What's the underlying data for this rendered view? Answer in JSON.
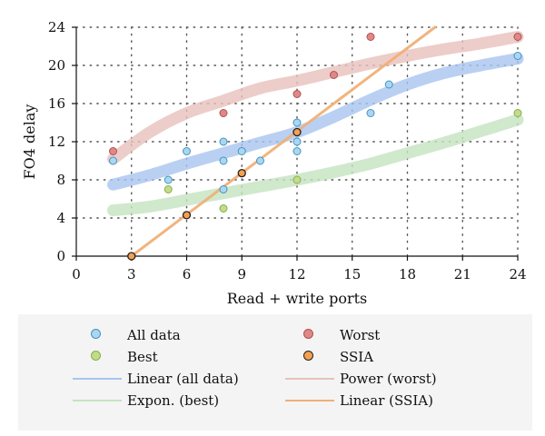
{
  "chart_data": {
    "type": "scatter",
    "title": "",
    "xlabel": "Read + write ports",
    "ylabel": "FO4 delay",
    "xlim": [
      0,
      24
    ],
    "ylim": [
      0,
      24
    ],
    "xticks": [
      0,
      3,
      6,
      9,
      12,
      15,
      18,
      21,
      24
    ],
    "yticks": [
      0,
      4,
      8,
      12,
      16,
      20,
      24
    ],
    "grid": "dotted horizontal and vertical",
    "legend_position": "bottom",
    "series": [
      {
        "name": "All data",
        "kind": "points",
        "color": "#a8d8f0",
        "edge": "#4a90c0",
        "points": [
          [
            2,
            10
          ],
          [
            5,
            8
          ],
          [
            6,
            11
          ],
          [
            8,
            12
          ],
          [
            8,
            10
          ],
          [
            8,
            7
          ],
          [
            9,
            11
          ],
          [
            10,
            10
          ],
          [
            12,
            14
          ],
          [
            12,
            13
          ],
          [
            12,
            12
          ],
          [
            12,
            11
          ],
          [
            16,
            15
          ],
          [
            17,
            18
          ],
          [
            24,
            21
          ]
        ]
      },
      {
        "name": "Worst",
        "kind": "points",
        "color": "#e08888",
        "edge": "#b05050",
        "points": [
          [
            2,
            11
          ],
          [
            8,
            15
          ],
          [
            12,
            17
          ],
          [
            14,
            19
          ],
          [
            16,
            23
          ],
          [
            24,
            23
          ]
        ]
      },
      {
        "name": "Best",
        "kind": "points",
        "color": "#c2dc88",
        "edge": "#8aac50",
        "points": [
          [
            5,
            7
          ],
          [
            8,
            5
          ],
          [
            12,
            8
          ],
          [
            24,
            15
          ]
        ]
      },
      {
        "name": "SSIA",
        "kind": "points",
        "color": "#f5a050",
        "edge": "#222222",
        "points": [
          [
            3,
            0
          ],
          [
            6,
            4.3
          ],
          [
            9,
            8.7
          ],
          [
            12,
            13
          ]
        ]
      },
      {
        "name": "Linear (all data)",
        "kind": "trend",
        "color": "#a8c4f0",
        "points": [
          [
            2,
            7.5
          ],
          [
            4,
            8.5
          ],
          [
            6,
            9.7
          ],
          [
            8,
            10.8
          ],
          [
            10,
            11.9
          ],
          [
            12,
            13
          ],
          [
            14,
            14.6
          ],
          [
            16,
            16.4
          ],
          [
            18,
            18
          ],
          [
            20,
            19.2
          ],
          [
            22,
            20
          ],
          [
            24,
            20.7
          ]
        ]
      },
      {
        "name": "Power (worst)",
        "kind": "trend",
        "color": "#e8c0bc",
        "points": [
          [
            2,
            10.2
          ],
          [
            4,
            13
          ],
          [
            6,
            15
          ],
          [
            8,
            16.3
          ],
          [
            10,
            17.6
          ],
          [
            12,
            18.4
          ],
          [
            14,
            19.3
          ],
          [
            16,
            20.2
          ],
          [
            18,
            21
          ],
          [
            20,
            21.7
          ],
          [
            22,
            22.3
          ],
          [
            24,
            23
          ]
        ]
      },
      {
        "name": "Expon. (best)",
        "kind": "trend",
        "color": "#c4e4c0",
        "points": [
          [
            2,
            4.8
          ],
          [
            4,
            5.2
          ],
          [
            6,
            5.9
          ],
          [
            8,
            6.6
          ],
          [
            10,
            7.3
          ],
          [
            12,
            8
          ],
          [
            14,
            8.8
          ],
          [
            16,
            9.7
          ],
          [
            18,
            10.8
          ],
          [
            20,
            11.9
          ],
          [
            22,
            13.1
          ],
          [
            24,
            14.3
          ]
        ]
      },
      {
        "name": "Linear (SSIA)",
        "kind": "trend",
        "color": "#f0b078",
        "points": [
          [
            3,
            0
          ],
          [
            19.5,
            24
          ]
        ]
      }
    ]
  },
  "legend": {
    "items": [
      {
        "label": "All data",
        "kind": "dot",
        "color": "#a8d8f0",
        "edge": "#4a90c0"
      },
      {
        "label": "Worst",
        "kind": "dot",
        "color": "#e08888",
        "edge": "#b05050"
      },
      {
        "label": "Best",
        "kind": "dot",
        "color": "#c2dc88",
        "edge": "#8aac50"
      },
      {
        "label": "SSIA",
        "kind": "dot",
        "color": "#f5a050",
        "edge": "#222222"
      },
      {
        "label": "Linear (all data)",
        "kind": "line",
        "color": "#a8c4f0"
      },
      {
        "label": "Power (worst)",
        "kind": "line",
        "color": "#e8c0bc"
      },
      {
        "label": "Expon. (best)",
        "kind": "line",
        "color": "#c4e4c0"
      },
      {
        "label": "Linear (SSIA)",
        "kind": "line",
        "color": "#f0b078"
      }
    ]
  }
}
